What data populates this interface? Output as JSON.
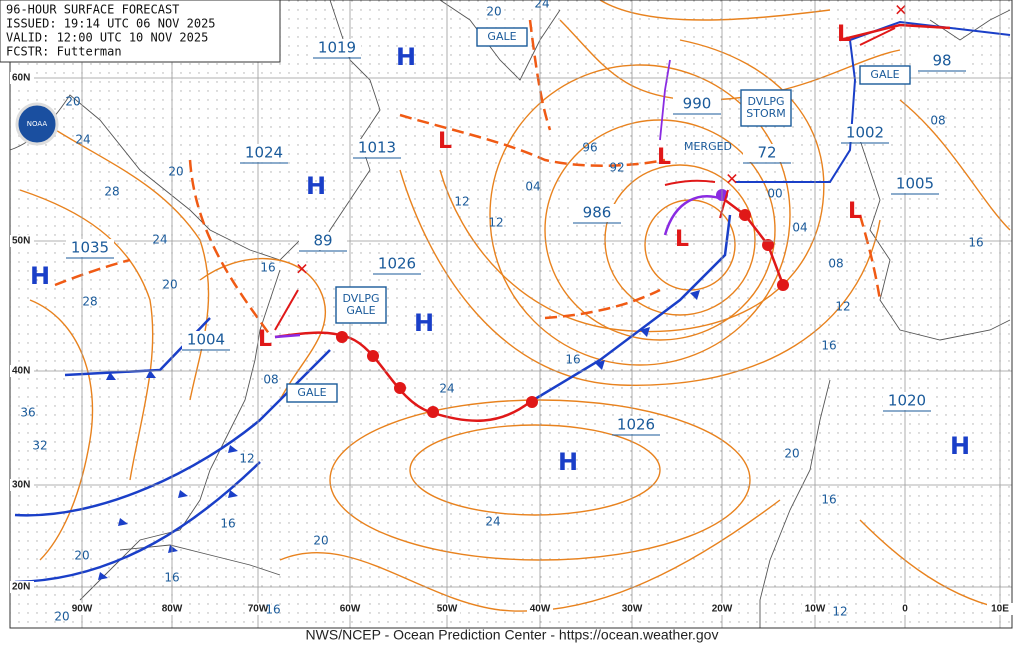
{
  "header": {
    "lines": [
      "96-HOUR SURFACE FORECAST",
      "ISSUED: 19:14 UTC 06 NOV 2025",
      "VALID: 12:00 UTC 10 NOV 2025",
      "FCSTR: Futterman"
    ]
  },
  "footer": "NWS/NCEP - Ocean Prediction Center - https://ocean.weather.gov",
  "logo": "NOAA",
  "lat_labels": [
    "60N",
    "50N",
    "40N",
    "30N",
    "20N"
  ],
  "lon_labels": [
    "90W",
    "80W",
    "70W",
    "60W",
    "50W",
    "40W",
    "30W",
    "20W",
    "10W",
    "0",
    "10E"
  ],
  "highs": [
    "H",
    "H",
    "H",
    "H",
    "H",
    "H"
  ],
  "lows": [
    "L",
    "L",
    "L",
    "L",
    "L",
    "L"
  ],
  "pressures": [
    "1019",
    "1024",
    "1013",
    "1035",
    "89",
    "1026",
    "1004",
    "990",
    "72",
    "986",
    "1002",
    "1005",
    "98",
    "1020",
    "1026"
  ],
  "warnings": [
    "GALE",
    "GALE",
    "DVLPG GALE",
    "DVLPG STORM",
    "GALE"
  ],
  "notes": [
    "MERGED"
  ],
  "isobar_labels": [
    "20",
    "24",
    "28",
    "20",
    "24",
    "28",
    "20",
    "16",
    "08",
    "36",
    "32",
    "12",
    "16",
    "20",
    "16",
    "20",
    "16",
    "20",
    "24",
    "12",
    "12",
    "04",
    "96",
    "92",
    "00",
    "04",
    "08",
    "12",
    "16",
    "16",
    "20",
    "16",
    "12",
    "24",
    "08",
    "16",
    "20",
    "24"
  ]
}
